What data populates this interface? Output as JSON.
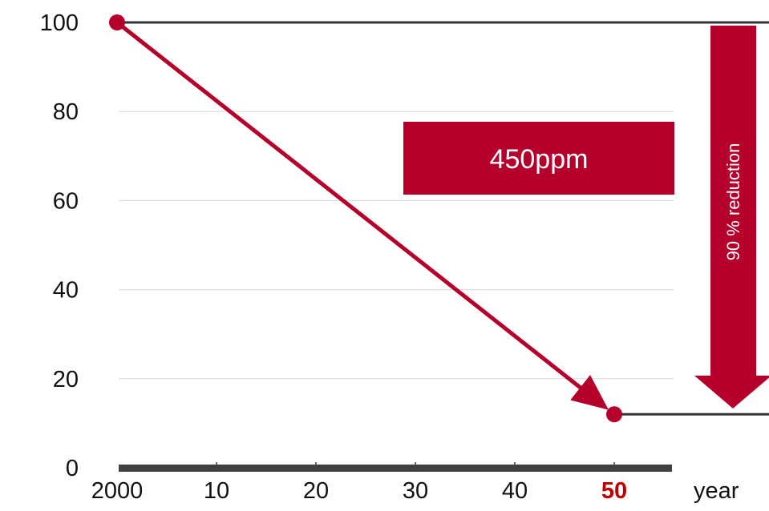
{
  "chart_data": {
    "type": "line",
    "x": [
      2000,
      2050
    ],
    "y": [
      100,
      12
    ],
    "ylim": [
      0,
      100
    ],
    "y_ticks": [
      {
        "value": 100,
        "label": "100"
      },
      {
        "value": 80,
        "label": "80"
      },
      {
        "value": 60,
        "label": "60"
      },
      {
        "value": 40,
        "label": "40"
      },
      {
        "value": 20,
        "label": "20"
      },
      {
        "value": 0,
        "label": "0"
      }
    ],
    "x_ticks": [
      {
        "value": 2000,
        "label": "2000"
      },
      {
        "value": 2010,
        "label": "10"
      },
      {
        "value": 2020,
        "label": "20"
      },
      {
        "value": 2030,
        "label": "30"
      },
      {
        "value": 2040,
        "label": "40"
      },
      {
        "value": 2050,
        "label": "50",
        "highlight": true
      }
    ],
    "xlabel": "year",
    "grid": true,
    "annotations": {
      "box_label": "450ppm",
      "reduction_label": "90 % reduction"
    },
    "colors": {
      "accent": "#b5002b",
      "highlight_tick": "#c00000",
      "axis": "#404040",
      "grid": "#d9d9d9",
      "reference_line": "#333333"
    }
  }
}
